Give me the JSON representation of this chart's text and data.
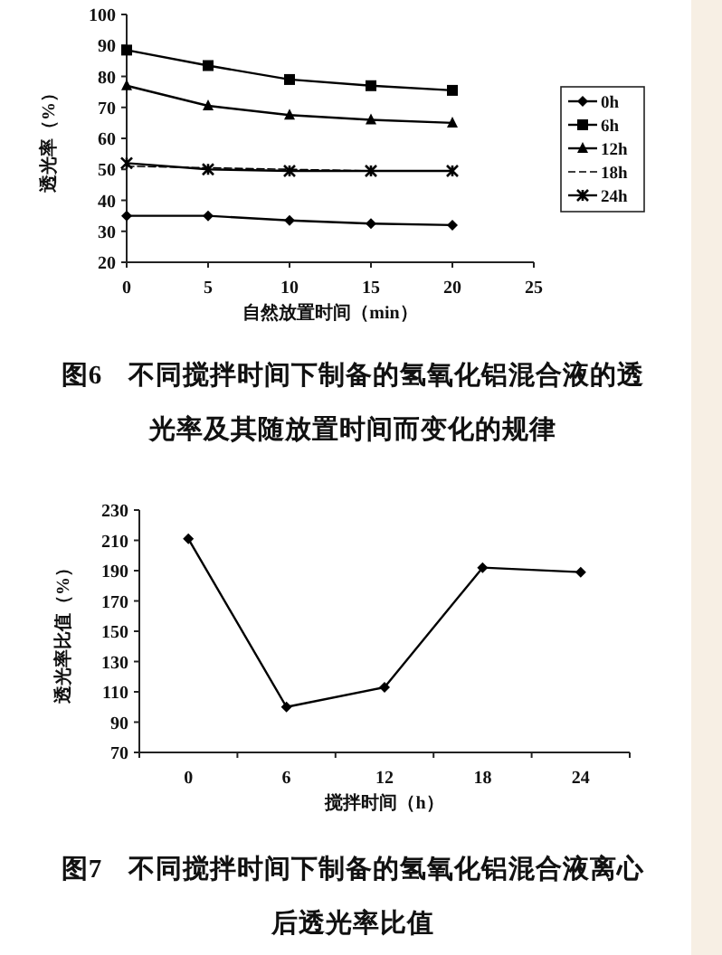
{
  "chart_data": [
    {
      "type": "line",
      "title": "图6　不同搅拌时间下制备的氢氧化铝混合液的透光率及其随放置时间而变化的规律",
      "xlabel": "自然放置时间（min）",
      "ylabel": "透光率（%）",
      "x": [
        0,
        5,
        10,
        15,
        20
      ],
      "xlim": [
        0,
        25
      ],
      "xticks": [
        0,
        5,
        10,
        15,
        20,
        25
      ],
      "ylim": [
        20,
        100
      ],
      "yticks": [
        20,
        30,
        40,
        50,
        60,
        70,
        80,
        90,
        100
      ],
      "grid": false,
      "legend": "right",
      "line_style": "solid",
      "series": [
        {
          "name": "0h",
          "color": "#000000",
          "marker": "diamond",
          "values": [
            35,
            35,
            33.5,
            32.5,
            32
          ]
        },
        {
          "name": "6h",
          "color": "#000000",
          "marker": "square",
          "values": [
            88.5,
            83.5,
            79,
            77,
            75.5
          ]
        },
        {
          "name": "12h",
          "color": "#000000",
          "marker": "triangle",
          "values": [
            77,
            70.5,
            67.5,
            66,
            65
          ]
        },
        {
          "name": "18h",
          "color": "#000000",
          "marker": "none",
          "line_style": "dashed",
          "values": [
            51,
            50.5,
            50,
            49.5,
            49.5
          ]
        },
        {
          "name": "24h",
          "color": "#000000",
          "marker": "cross",
          "values": [
            52,
            50,
            49.5,
            49.5,
            49.5
          ]
        }
      ]
    },
    {
      "type": "line",
      "title": "图7　不同搅拌时间下制备的氢氧化铝混合液离心后透光率比值",
      "xlabel": "搅拌时间（h）",
      "ylabel": "透光率比值（%）",
      "categories": [
        "0",
        "6",
        "12",
        "18",
        "24"
      ],
      "ylim": [
        70,
        230
      ],
      "yticks": [
        70,
        90,
        110,
        130,
        150,
        170,
        190,
        210,
        230
      ],
      "grid": false,
      "legend": false,
      "marker": "diamond",
      "line_style": "solid",
      "series": [
        {
          "color": "#000000",
          "values": [
            211,
            100,
            113,
            192,
            189
          ]
        }
      ]
    }
  ]
}
